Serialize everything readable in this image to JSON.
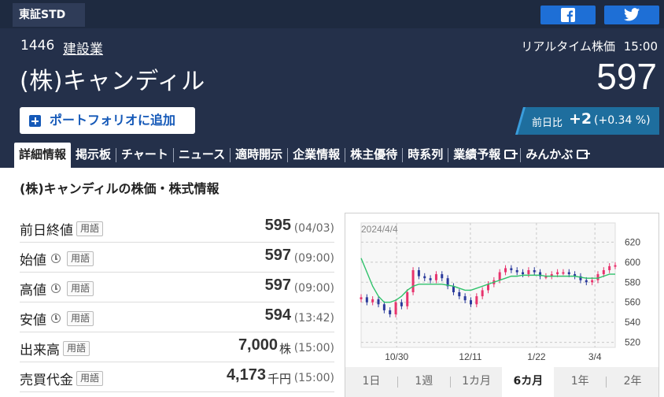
{
  "header": {
    "market": "東証STD",
    "share": {
      "facebook_icon": "facebook-icon",
      "twitter_icon": "twitter-icon"
    },
    "code": "1446",
    "sector": "建設業",
    "realtime_label": "リアルタイム株価",
    "realtime_time": "15:00",
    "company_name": "(株)キャンディル",
    "price": "597",
    "portfolio_button": "ポートフォリオに追加",
    "change_label": "前日比",
    "change_value": "+2",
    "change_pct": "(+0.34 %)"
  },
  "tabs": [
    "詳細情報",
    "掲示板",
    "チャート",
    "ニュース",
    "適時開示",
    "企業情報",
    "株主優待",
    "時系列",
    "業績予報",
    "みんかぶ"
  ],
  "section_title": "(株)キャンディルの株価・株式情報",
  "quotes": [
    {
      "label": "前日終値",
      "term": "用語",
      "value": "595",
      "unit": "",
      "time": "(04/03)",
      "clock": false
    },
    {
      "label": "始値",
      "term": "用語",
      "value": "597",
      "unit": "",
      "time": "(09:00)",
      "clock": true
    },
    {
      "label": "高値",
      "term": "用語",
      "value": "597",
      "unit": "",
      "time": "(09:00)",
      "clock": true
    },
    {
      "label": "安値",
      "term": "用語",
      "value": "594",
      "unit": "",
      "time": "(13:42)",
      "clock": true
    },
    {
      "label": "出来高",
      "term": "用語",
      "value": "7,000",
      "unit": "株",
      "time": "(15:00)",
      "clock": false
    },
    {
      "label": "売買代金",
      "term": "用語",
      "value": "4,173",
      "unit": "千円",
      "time": "(15:00)",
      "clock": false
    }
  ],
  "period_tabs": [
    "1日",
    "1週",
    "1カ月",
    "6カ月",
    "1年",
    "2年"
  ],
  "active_period": "6カ月",
  "colors": {
    "header_bg": "#24304a",
    "accent_blue": "#1559b8",
    "change_bg": "#1e6e9e",
    "candle_up": "#e8336d",
    "candle_down": "#2a3a9c",
    "ma_line": "#2fc26b"
  },
  "chart_data": {
    "type": "line",
    "title": "2024/4/4",
    "x_ticks": [
      "10/30",
      "12/11",
      "1/22",
      "3/4"
    ],
    "y_ticks": [
      520,
      540,
      560,
      580,
      600,
      620
    ],
    "ylim": [
      515,
      625
    ],
    "grid": true,
    "series": [
      {
        "values": [
          565,
          560,
          563,
          558,
          552,
          548,
          560,
          556,
          570,
          592,
          586,
          584,
          582,
          588,
          584,
          576,
          570,
          566,
          562,
          558,
          566,
          572,
          578,
          582,
          590,
          594,
          592,
          590,
          588,
          592,
          590,
          586,
          586,
          588,
          590,
          590,
          588,
          586,
          582,
          580,
          582,
          588,
          592,
          596,
          597
        ]
      },
      {
        "values": [
          604,
          590,
          576,
          566,
          560,
          560,
          562,
          566,
          572,
          576,
          578,
          578,
          578,
          578,
          578,
          577,
          576,
          574,
          572,
          572,
          574,
          576,
          578,
          580,
          582,
          584,
          586,
          586,
          587,
          587,
          587,
          587,
          586,
          586,
          586,
          586,
          586,
          586,
          585,
          584,
          584,
          584,
          586,
          588,
          588
        ]
      }
    ]
  }
}
